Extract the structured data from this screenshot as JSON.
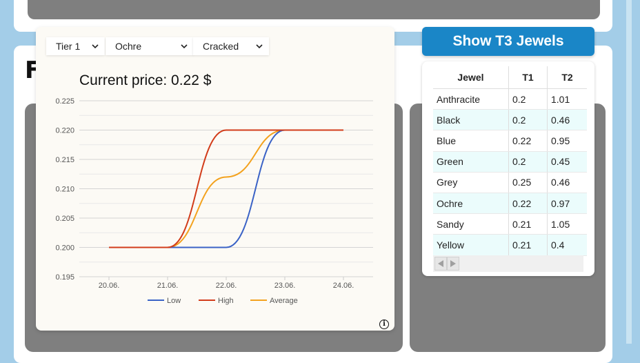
{
  "page": {
    "heading": "F"
  },
  "colors": {
    "background": "#a3cde8",
    "card": "#ffffff",
    "panel_gray": "#7f7f7f",
    "accent_blue": "#1a86c7",
    "low": "#3a62c6",
    "high": "#d23c1a",
    "average": "#f3a21e",
    "row_alt": "#ebfcfc"
  },
  "top_tabs": [
    {
      "color": "#1a86c7"
    },
    {
      "color": "#6b4fc8"
    },
    {
      "color": "#1a86c7"
    },
    {
      "color": "#1a86c7"
    }
  ],
  "filters": {
    "tier": {
      "selected": "Tier 1",
      "icon": "chevron-down-icon"
    },
    "color": {
      "selected": "Ochre",
      "icon": "chevron-down-icon"
    },
    "condition": {
      "selected": "Cracked",
      "icon": "chevron-down-icon"
    }
  },
  "chart": {
    "current_price_text": "Current price: 0.22 $",
    "info_icon": "info-icon",
    "info_glyph": "i"
  },
  "chart_data": {
    "type": "line",
    "x": [
      "20.06.",
      "21.06.",
      "22.06.",
      "23.06.",
      "24.06."
    ],
    "yticks": [
      "0.195",
      "0.200",
      "0.205",
      "0.210",
      "0.215",
      "0.220",
      "0.225"
    ],
    "ylim": [
      0.195,
      0.225
    ],
    "grid": true,
    "legend_position": "bottom",
    "series": [
      {
        "name": "Low",
        "values": [
          0.2,
          0.2,
          0.2,
          0.22,
          0.22
        ],
        "color": "#3a62c6"
      },
      {
        "name": "High",
        "values": [
          0.2,
          0.2,
          0.22,
          0.22,
          0.22
        ],
        "color": "#d23c1a"
      },
      {
        "name": "Average",
        "values": [
          0.2,
          0.2,
          0.212,
          0.22,
          0.22
        ],
        "color": "#f3a21e"
      }
    ]
  },
  "t3_button": {
    "label": "Show T3 Jewels"
  },
  "jewel_table": {
    "headers": [
      "Jewel",
      "T1",
      "T2"
    ],
    "rows": [
      [
        "Anthracite",
        "0.2",
        "1.01"
      ],
      [
        "Black",
        "0.2",
        "0.46"
      ],
      [
        "Blue",
        "0.22",
        "0.95"
      ],
      [
        "Green",
        "0.2",
        "0.45"
      ],
      [
        "Grey",
        "0.25",
        "0.46"
      ],
      [
        "Ochre",
        "0.22",
        "0.97"
      ],
      [
        "Sandy",
        "0.21",
        "1.05"
      ],
      [
        "Yellow",
        "0.21",
        "0.4"
      ]
    ],
    "scroll_icons": [
      "arrow-left-icon",
      "arrow-right-icon"
    ]
  }
}
